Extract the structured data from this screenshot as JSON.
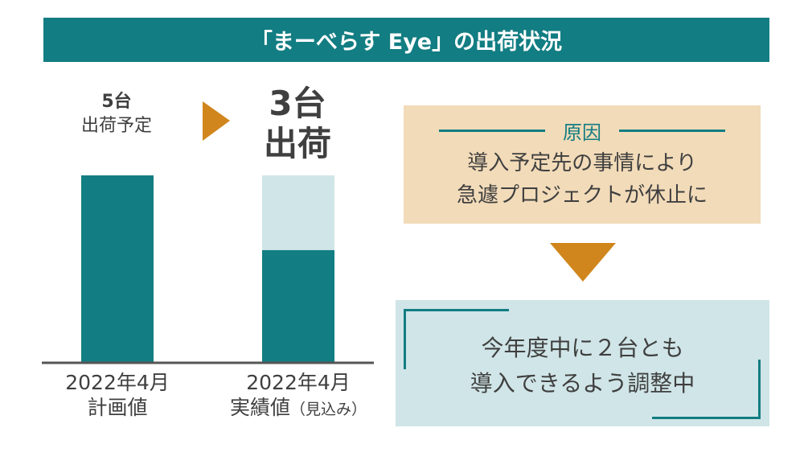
{
  "title": "「まーべらす Eye」の出荷状況",
  "plan": {
    "count": "5台",
    "label": "出荷予定"
  },
  "actual": {
    "count": "3台",
    "label": "出荷"
  },
  "chart_data": {
    "type": "bar",
    "stacked": true,
    "categories": [
      [
        "2022年4月",
        "計画値",
        ""
      ],
      [
        "2022年4月",
        "実績値",
        "（見込み）"
      ]
    ],
    "series": [
      {
        "values": [
          5,
          3
        ],
        "color": "#127d82"
      },
      {
        "values": [
          0,
          2
        ],
        "color": "#d0e5e7"
      }
    ],
    "ylim": [
      0,
      5
    ],
    "grid": false
  },
  "cause": {
    "heading": "原因",
    "lines": [
      "導入予定先の事情により",
      "急遽プロジェクトが休止に"
    ]
  },
  "result": {
    "lines": [
      "今年度中に２台とも",
      "導入できるよう調整中"
    ]
  },
  "colors": {
    "teal": "#127d82",
    "light_teal": "#d0e5e7",
    "orange": "#d0861c",
    "beige": "#f2dbb9"
  }
}
